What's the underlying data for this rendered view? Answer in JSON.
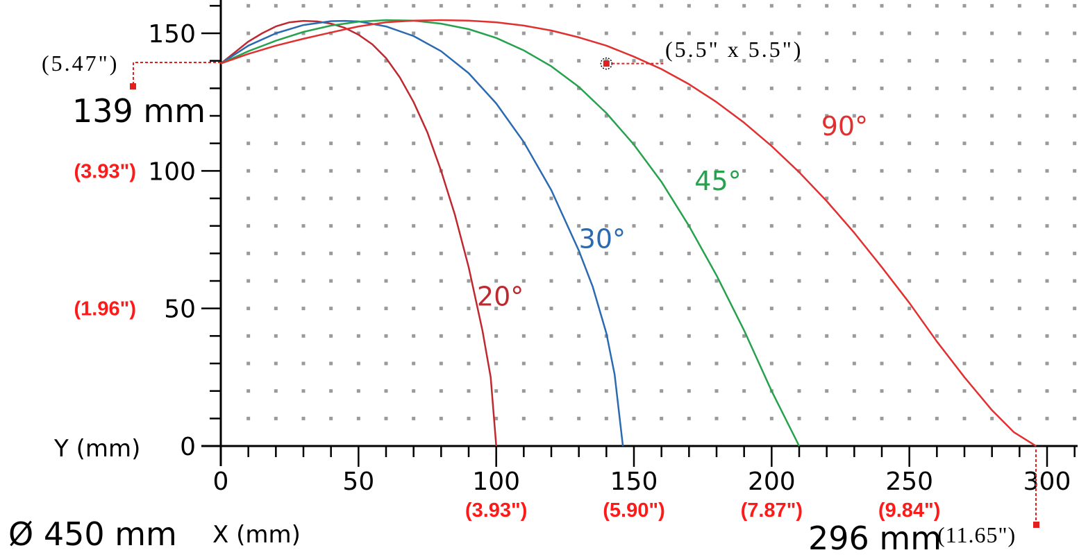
{
  "chart_data": {
    "type": "line",
    "xlabel": "X (mm)",
    "ylabel": "Y (mm)",
    "xlim": [
      0,
      300
    ],
    "ylim": [
      0,
      150
    ],
    "x_ticks": [
      0,
      50,
      100,
      150,
      200,
      250,
      300
    ],
    "y_ticks": [
      0,
      50,
      100,
      150
    ],
    "grid": "dotted",
    "series": [
      {
        "name": "20°",
        "color": "#c0282f",
        "points": [
          [
            0,
            139
          ],
          [
            5,
            143
          ],
          [
            10,
            147
          ],
          [
            15,
            150
          ],
          [
            20,
            152.5
          ],
          [
            25,
            154
          ],
          [
            30,
            154.5
          ],
          [
            35,
            154.3
          ],
          [
            40,
            153.5
          ],
          [
            45,
            152
          ],
          [
            50,
            149.5
          ],
          [
            55,
            146
          ],
          [
            60,
            141
          ],
          [
            65,
            134
          ],
          [
            70,
            125
          ],
          [
            75,
            114
          ],
          [
            80,
            100
          ],
          [
            85,
            84
          ],
          [
            90,
            65
          ],
          [
            95,
            42
          ],
          [
            98,
            25
          ],
          [
            100,
            0
          ]
        ]
      },
      {
        "name": "30°",
        "color": "#2a6ab0",
        "points": [
          [
            0,
            139
          ],
          [
            10,
            145.5
          ],
          [
            20,
            150
          ],
          [
            30,
            153
          ],
          [
            40,
            154.4
          ],
          [
            45,
            154.5
          ],
          [
            50,
            154.3
          ],
          [
            60,
            152.5
          ],
          [
            70,
            149
          ],
          [
            80,
            143.5
          ],
          [
            90,
            135.5
          ],
          [
            100,
            124.5
          ],
          [
            110,
            110.5
          ],
          [
            120,
            93
          ],
          [
            130,
            71
          ],
          [
            135,
            58
          ],
          [
            140,
            41
          ],
          [
            143,
            26
          ],
          [
            146,
            0
          ]
        ]
      },
      {
        "name": "45°",
        "color": "#26a24e",
        "points": [
          [
            0,
            139
          ],
          [
            10,
            143.5
          ],
          [
            20,
            147.3
          ],
          [
            30,
            150.5
          ],
          [
            40,
            152.8
          ],
          [
            50,
            154.2
          ],
          [
            60,
            154.8
          ],
          [
            70,
            154.6
          ],
          [
            80,
            153.5
          ],
          [
            90,
            151.5
          ],
          [
            100,
            148.3
          ],
          [
            110,
            143.8
          ],
          [
            120,
            138
          ],
          [
            130,
            130.5
          ],
          [
            140,
            121
          ],
          [
            150,
            109.5
          ],
          [
            160,
            96
          ],
          [
            170,
            80
          ],
          [
            180,
            62
          ],
          [
            190,
            42
          ],
          [
            200,
            20
          ],
          [
            210,
            0
          ]
        ]
      },
      {
        "name": "90°",
        "color": "#e03030",
        "points": [
          [
            0,
            139
          ],
          [
            10,
            142.5
          ],
          [
            20,
            145.5
          ],
          [
            30,
            148
          ],
          [
            40,
            150.3
          ],
          [
            50,
            152.5
          ],
          [
            60,
            154
          ],
          [
            70,
            154.6
          ],
          [
            80,
            154.8
          ],
          [
            90,
            154.6
          ],
          [
            100,
            154
          ],
          [
            110,
            152.8
          ],
          [
            120,
            151
          ],
          [
            130,
            148.5
          ],
          [
            140,
            145.5
          ],
          [
            150,
            141.5
          ],
          [
            160,
            137
          ],
          [
            170,
            131.5
          ],
          [
            180,
            125
          ],
          [
            190,
            117.5
          ],
          [
            200,
            109
          ],
          [
            210,
            99.5
          ],
          [
            220,
            89
          ],
          [
            230,
            77.5
          ],
          [
            240,
            65
          ],
          [
            250,
            52
          ],
          [
            260,
            38
          ],
          [
            270,
            25
          ],
          [
            280,
            13
          ],
          [
            288,
            5
          ],
          [
            296,
            0
          ]
        ]
      }
    ],
    "curve_labels": [
      {
        "text": "20°",
        "x": 93,
        "y": 51
      },
      {
        "text": "30°",
        "x": 130,
        "y": 72
      },
      {
        "text": "45°",
        "x": 172,
        "y": 93
      },
      {
        "text": "90°",
        "x": 218,
        "y": 113
      }
    ],
    "inch_labels_x": [
      {
        "x": 100,
        "text": "(3.93\")"
      },
      {
        "x": 150,
        "text": "(5.90\")"
      },
      {
        "x": 200,
        "text": "(7.87\")"
      },
      {
        "x": 250,
        "text": "(9.84\")"
      }
    ],
    "inch_labels_y": [
      {
        "y": 100,
        "text": "(3.93\")"
      },
      {
        "y": 50,
        "text": "(1.96\")"
      }
    ],
    "annotations": {
      "start_height_inch": "(5.47\")",
      "start_height_mm": "139 mm",
      "reach_mm": "296 mm",
      "reach_inch": "(11.65\")",
      "point_label": "(5.5\" x 5.5\")",
      "point": {
        "x": 140,
        "y": 139
      },
      "diameter": "Ø 450 mm"
    }
  }
}
